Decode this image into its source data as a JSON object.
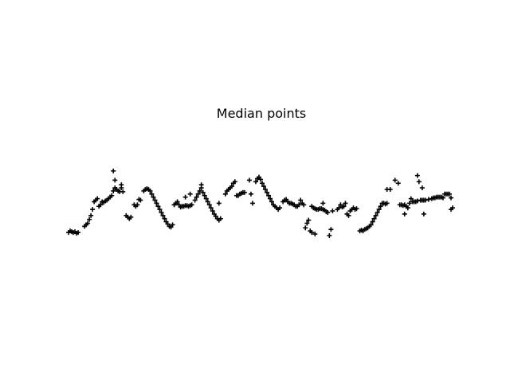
{
  "chart_data": {
    "type": "scatter",
    "title": "Median points",
    "xlabel": "",
    "ylabel": "",
    "axes_visible": false,
    "grid": false,
    "legend": "none",
    "marker": "plus",
    "marker_color": "#000000",
    "xlim": [
      0,
      480
    ],
    "ylim": [
      0,
      120
    ],
    "points": [
      [
        0,
        4
      ],
      [
        2,
        6
      ],
      [
        4,
        5
      ],
      [
        6,
        4
      ],
      [
        8,
        5
      ],
      [
        10,
        3
      ],
      [
        12,
        4
      ],
      [
        20,
        12
      ],
      [
        22,
        14
      ],
      [
        24,
        16
      ],
      [
        26,
        21
      ],
      [
        28,
        26
      ],
      [
        30,
        34
      ],
      [
        32,
        44
      ],
      [
        34,
        46
      ],
      [
        36,
        48
      ],
      [
        38,
        38
      ],
      [
        40,
        40
      ],
      [
        42,
        44
      ],
      [
        44,
        43
      ],
      [
        46,
        45
      ],
      [
        48,
        46
      ],
      [
        50,
        48
      ],
      [
        52,
        50
      ],
      [
        54,
        52
      ],
      [
        56,
        58
      ],
      [
        58,
        62
      ],
      [
        60,
        60
      ],
      [
        62,
        58
      ],
      [
        64,
        57
      ],
      [
        66,
        62
      ],
      [
        68,
        57
      ],
      [
        56,
        84
      ],
      [
        58,
        72
      ],
      [
        66,
        66
      ],
      [
        72,
        26
      ],
      [
        74,
        24
      ],
      [
        76,
        22
      ],
      [
        78,
        24
      ],
      [
        82,
        40
      ],
      [
        84,
        38
      ],
      [
        86,
        40
      ],
      [
        88,
        47
      ],
      [
        90,
        46
      ],
      [
        94,
        58
      ],
      [
        96,
        60
      ],
      [
        98,
        61
      ],
      [
        100,
        60
      ],
      [
        102,
        58
      ],
      [
        104,
        54
      ],
      [
        106,
        50
      ],
      [
        108,
        46
      ],
      [
        110,
        42
      ],
      [
        112,
        38
      ],
      [
        114,
        34
      ],
      [
        116,
        30
      ],
      [
        118,
        26
      ],
      [
        120,
        22
      ],
      [
        122,
        18
      ],
      [
        124,
        15
      ],
      [
        126,
        12
      ],
      [
        128,
        11
      ],
      [
        130,
        14
      ],
      [
        132,
        40
      ],
      [
        134,
        42
      ],
      [
        136,
        44
      ],
      [
        138,
        40
      ],
      [
        140,
        37
      ],
      [
        142,
        38
      ],
      [
        144,
        38
      ],
      [
        146,
        39
      ],
      [
        148,
        39
      ],
      [
        150,
        38
      ],
      [
        152,
        39
      ],
      [
        154,
        40
      ],
      [
        158,
        46
      ],
      [
        160,
        50
      ],
      [
        162,
        54
      ],
      [
        164,
        58
      ],
      [
        166,
        62
      ],
      [
        168,
        56
      ],
      [
        170,
        52
      ],
      [
        172,
        48
      ],
      [
        174,
        44
      ],
      [
        176,
        40
      ],
      [
        178,
        36
      ],
      [
        180,
        32
      ],
      [
        182,
        28
      ],
      [
        184,
        25
      ],
      [
        186,
        22
      ],
      [
        188,
        20
      ],
      [
        190,
        22
      ],
      [
        146,
        50
      ],
      [
        152,
        54
      ],
      [
        166,
        66
      ],
      [
        188,
        42
      ],
      [
        196,
        54
      ],
      [
        198,
        58
      ],
      [
        200,
        60
      ],
      [
        202,
        62
      ],
      [
        204,
        64
      ],
      [
        206,
        68
      ],
      [
        208,
        70
      ],
      [
        210,
        52
      ],
      [
        212,
        52
      ],
      [
        214,
        54
      ],
      [
        216,
        55
      ],
      [
        218,
        56
      ],
      [
        220,
        56
      ],
      [
        226,
        72
      ],
      [
        228,
        54
      ],
      [
        230,
        42
      ],
      [
        234,
        70
      ],
      [
        236,
        74
      ],
      [
        238,
        76
      ],
      [
        240,
        73
      ],
      [
        242,
        68
      ],
      [
        244,
        64
      ],
      [
        246,
        60
      ],
      [
        248,
        56
      ],
      [
        250,
        52
      ],
      [
        252,
        48
      ],
      [
        254,
        44
      ],
      [
        256,
        40
      ],
      [
        258,
        38
      ],
      [
        260,
        36
      ],
      [
        262,
        34
      ],
      [
        264,
        36
      ],
      [
        268,
        44
      ],
      [
        270,
        46
      ],
      [
        272,
        47
      ],
      [
        274,
        44
      ],
      [
        276,
        42
      ],
      [
        278,
        42
      ],
      [
        280,
        41
      ],
      [
        282,
        40
      ],
      [
        284,
        38
      ],
      [
        286,
        38
      ],
      [
        288,
        40
      ],
      [
        290,
        46
      ],
      [
        292,
        42
      ],
      [
        294,
        40
      ],
      [
        296,
        10
      ],
      [
        298,
        16
      ],
      [
        300,
        20
      ],
      [
        302,
        6
      ],
      [
        304,
        4
      ],
      [
        308,
        2
      ],
      [
        304,
        38
      ],
      [
        306,
        36
      ],
      [
        308,
        35
      ],
      [
        310,
        34
      ],
      [
        312,
        34
      ],
      [
        314,
        35
      ],
      [
        316,
        35
      ],
      [
        318,
        34
      ],
      [
        320,
        33
      ],
      [
        322,
        31
      ],
      [
        324,
        30
      ],
      [
        326,
        0
      ],
      [
        328,
        8
      ],
      [
        330,
        32
      ],
      [
        318,
        42
      ],
      [
        336,
        34
      ],
      [
        338,
        36
      ],
      [
        340,
        40
      ],
      [
        342,
        37
      ],
      [
        344,
        38
      ],
      [
        346,
        42
      ],
      [
        348,
        28
      ],
      [
        350,
        26
      ],
      [
        352,
        32
      ],
      [
        354,
        34
      ],
      [
        356,
        36
      ],
      [
        358,
        34
      ],
      [
        360,
        35
      ],
      [
        364,
        6
      ],
      [
        366,
        7
      ],
      [
        368,
        6
      ],
      [
        370,
        8
      ],
      [
        372,
        9
      ],
      [
        374,
        10
      ],
      [
        376,
        12
      ],
      [
        378,
        14
      ],
      [
        380,
        18
      ],
      [
        382,
        22
      ],
      [
        384,
        26
      ],
      [
        386,
        30
      ],
      [
        388,
        34
      ],
      [
        390,
        38
      ],
      [
        392,
        42
      ],
      [
        394,
        42
      ],
      [
        396,
        41
      ],
      [
        398,
        42
      ],
      [
        398,
        60
      ],
      [
        402,
        60
      ],
      [
        408,
        72
      ],
      [
        412,
        68
      ],
      [
        414,
        40
      ],
      [
        416,
        40
      ],
      [
        418,
        39
      ],
      [
        420,
        40
      ],
      [
        422,
        38
      ],
      [
        424,
        36
      ],
      [
        426,
        42
      ],
      [
        430,
        44
      ],
      [
        432,
        44
      ],
      [
        434,
        44
      ],
      [
        420,
        28
      ],
      [
        424,
        36
      ],
      [
        428,
        48
      ],
      [
        436,
        78
      ],
      [
        438,
        70
      ],
      [
        442,
        62
      ],
      [
        444,
        28
      ],
      [
        436,
        45
      ],
      [
        440,
        46
      ],
      [
        442,
        46
      ],
      [
        444,
        46
      ],
      [
        446,
        46
      ],
      [
        450,
        47
      ],
      [
        454,
        48
      ],
      [
        456,
        49
      ],
      [
        458,
        49
      ],
      [
        460,
        50
      ],
      [
        462,
        50
      ],
      [
        464,
        50
      ],
      [
        466,
        50
      ],
      [
        468,
        49
      ],
      [
        470,
        54
      ],
      [
        472,
        54
      ],
      [
        474,
        54
      ],
      [
        476,
        54
      ],
      [
        478,
        49
      ],
      [
        478,
        34
      ],
      [
        480,
        36
      ]
    ]
  }
}
